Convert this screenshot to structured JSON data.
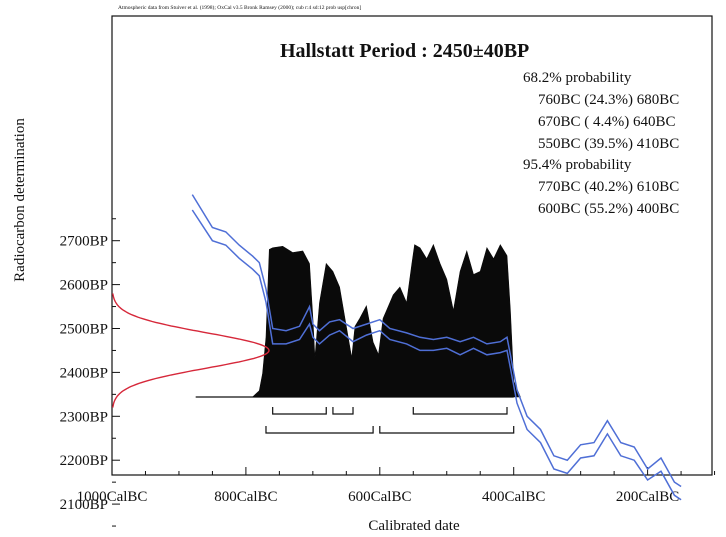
{
  "chart_data": {
    "type": "line",
    "source_note": "Atmospheric data from Stuiver et al. (1998); OxCal v3.5 Bronk Ramsey (2000); cub r:4 sd:12 prob usp[chron]",
    "title": "Hallstatt Period : 2450±40BP",
    "xlabel": "Calibrated date",
    "ylabel": "Radiocarbon determination",
    "x_ticks": [
      "1000CalBC",
      "800CalBC",
      "600CalBC",
      "400CalBC",
      "200CalBC"
    ],
    "y_ticks": [
      "2700BP",
      "2600BP",
      "2500BP",
      "2400BP",
      "2300BP",
      "2200BP",
      "2100BP"
    ],
    "xlim": [
      -1000,
      -100
    ],
    "ylim": [
      2000,
      2800
    ],
    "measurement": {
      "mean": 2450,
      "sd": 40
    },
    "probability_text": [
      "68.2% probability",
      "760BC (24.3%) 680BC",
      "670BC ( 4.4%) 640BC",
      "550BC (39.5%) 410BC",
      "95.4% probability",
      "770BC (40.2%) 610BC",
      "600BC (55.2%) 400BC"
    ],
    "ranges_68": [
      [
        -760,
        -680
      ],
      [
        -670,
        -640
      ],
      [
        -550,
        -410
      ]
    ],
    "ranges_95": [
      [
        -770,
        -610
      ],
      [
        -600,
        -400
      ]
    ],
    "calibration_curve": {
      "x": [
        -880,
        -850,
        -830,
        -810,
        -790,
        -780,
        -770,
        -760,
        -740,
        -720,
        -705,
        -700,
        -690,
        -675,
        -660,
        -640,
        -620,
        -600,
        -585,
        -560,
        -540,
        -520,
        -500,
        -480,
        -460,
        -440,
        -420,
        -410,
        -405,
        -395,
        -380,
        -360,
        -340,
        -320,
        -300,
        -280,
        -260,
        -240,
        -220,
        -200,
        -180,
        -160,
        -150
      ],
      "upper": [
        2805,
        2730,
        2720,
        2690,
        2665,
        2650,
        2590,
        2500,
        2495,
        2505,
        2550,
        2510,
        2495,
        2515,
        2520,
        2500,
        2510,
        2520,
        2500,
        2490,
        2480,
        2475,
        2480,
        2470,
        2480,
        2465,
        2470,
        2480,
        2440,
        2360,
        2300,
        2270,
        2210,
        2200,
        2235,
        2240,
        2290,
        2240,
        2230,
        2180,
        2205,
        2150,
        2140
      ],
      "lower": [
        2770,
        2700,
        2690,
        2660,
        2635,
        2620,
        2560,
        2465,
        2465,
        2475,
        2510,
        2480,
        2465,
        2485,
        2495,
        2470,
        2485,
        2495,
        2475,
        2465,
        2450,
        2450,
        2455,
        2440,
        2455,
        2440,
        2445,
        2450,
        2410,
        2330,
        2270,
        2240,
        2180,
        2170,
        2205,
        2210,
        2260,
        2210,
        2200,
        2155,
        2175,
        2120,
        2110
      ]
    },
    "measurement_curve": {
      "y_range": [
        2320,
        2580
      ]
    },
    "probability_distribution": {
      "x": [
        -790,
        -780,
        -775,
        -770,
        -765,
        -760,
        -745,
        -730,
        -715,
        -705,
        -700,
        -697,
        -690,
        -680,
        -670,
        -660,
        -650,
        -642,
        -637,
        -630,
        -620,
        -610,
        -602,
        -595,
        -590,
        -580,
        -570,
        -560,
        -552,
        -548,
        -540,
        -530,
        -520,
        -510,
        -500,
        -490,
        -480,
        -470,
        -460,
        -450,
        -440,
        -430,
        -420,
        -410,
        -405,
        -400,
        -390
      ],
      "y": [
        0,
        0.04,
        0.15,
        0.38,
        0.94,
        0.95,
        0.96,
        0.92,
        0.93,
        0.85,
        0.5,
        0.25,
        0.6,
        0.85,
        0.8,
        0.7,
        0.45,
        0.25,
        0.45,
        0.5,
        0.58,
        0.35,
        0.27,
        0.5,
        0.55,
        0.65,
        0.7,
        0.6,
        0.85,
        0.97,
        0.95,
        0.88,
        0.97,
        0.85,
        0.75,
        0.55,
        0.8,
        0.93,
        0.78,
        0.8,
        0.95,
        0.88,
        0.97,
        0.9,
        0.55,
        0.1,
        0
      ]
    }
  }
}
